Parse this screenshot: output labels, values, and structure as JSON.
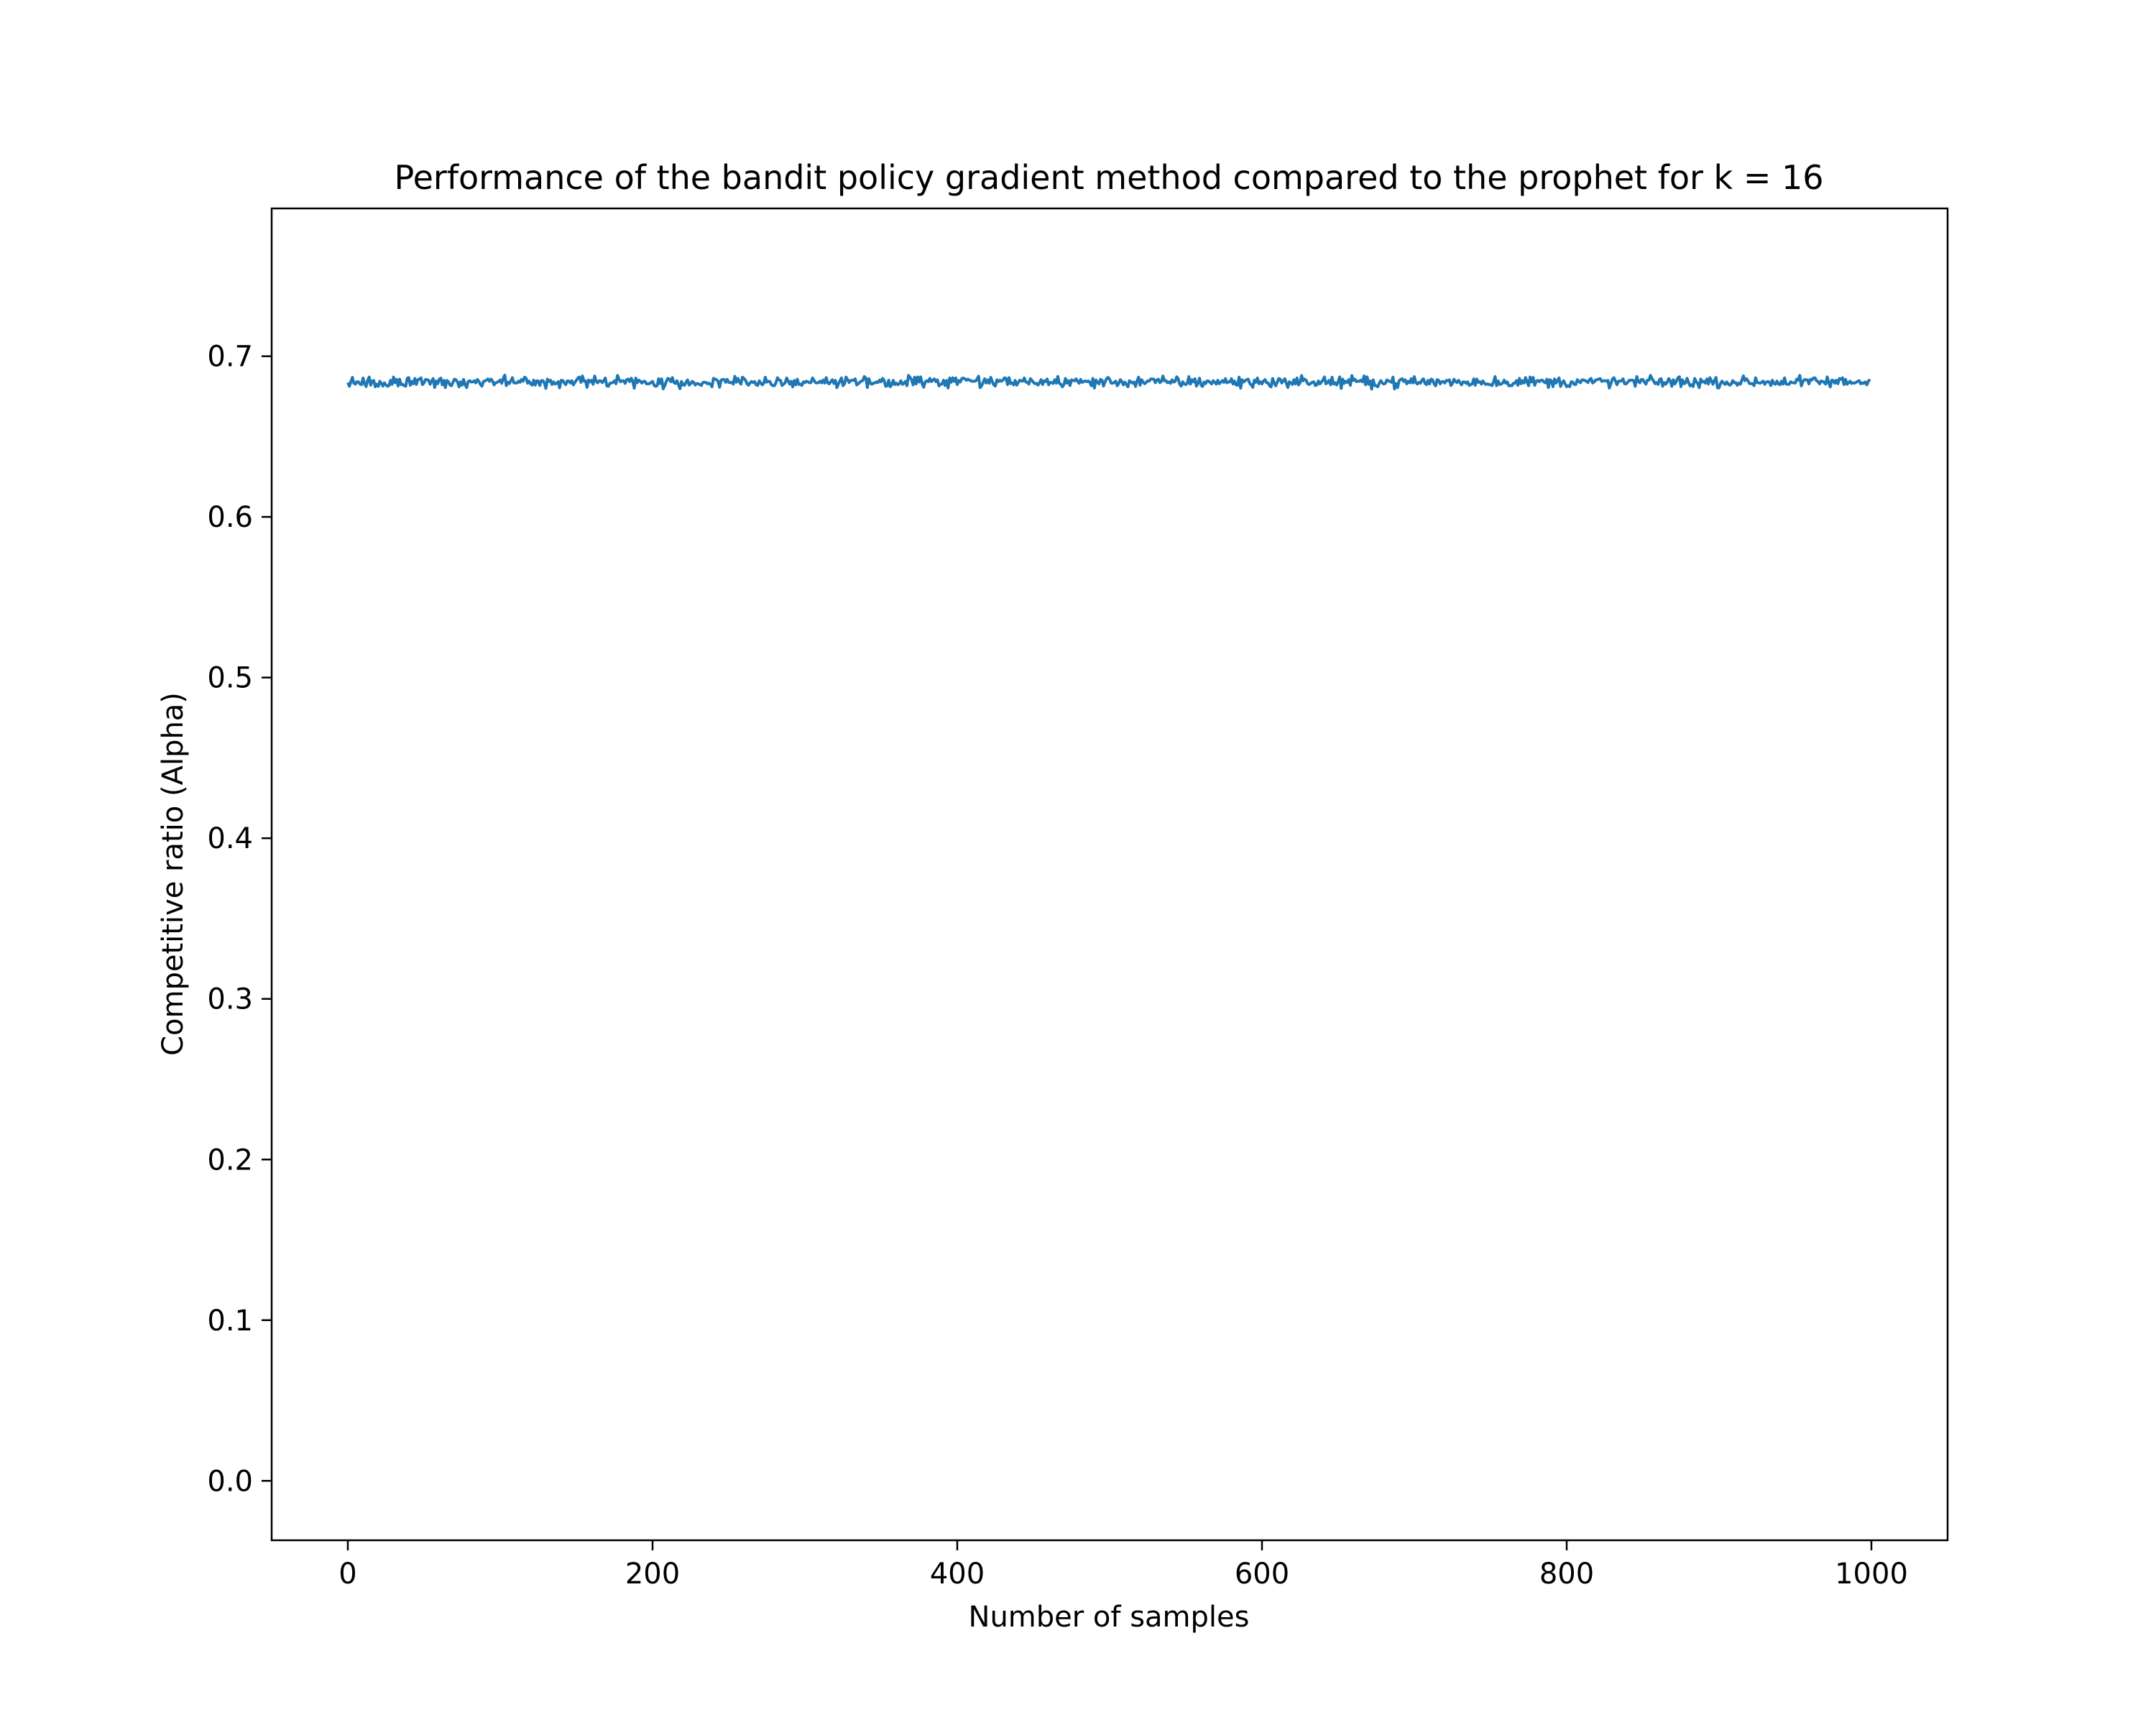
{
  "chart_data": {
    "type": "line",
    "title": "Performance of the bandit policy gradient method compared to the prophet for k = 16",
    "xlabel": "Number of samples",
    "ylabel": "Competitive ratio (Alpha)",
    "xlim": [
      -50,
      1050
    ],
    "ylim": [
      -0.037,
      0.792
    ],
    "xticks": [
      0,
      200,
      400,
      600,
      800,
      1000
    ],
    "xtick_labels": [
      "0",
      "200",
      "400",
      "600",
      "800",
      "1000"
    ],
    "yticks": [
      0.0,
      0.1,
      0.2,
      0.3,
      0.4,
      0.5,
      0.6,
      0.7
    ],
    "ytick_labels": [
      "0.0",
      "0.1",
      "0.2",
      "0.3",
      "0.4",
      "0.5",
      "0.6",
      "0.7"
    ],
    "grid": false,
    "legend": "none",
    "series": [
      {
        "color": "#1f77b4",
        "x_start": 0,
        "x_end": 999,
        "points": 1000,
        "mean": 0.684,
        "min": 0.679,
        "max": 0.689
      }
    ]
  }
}
